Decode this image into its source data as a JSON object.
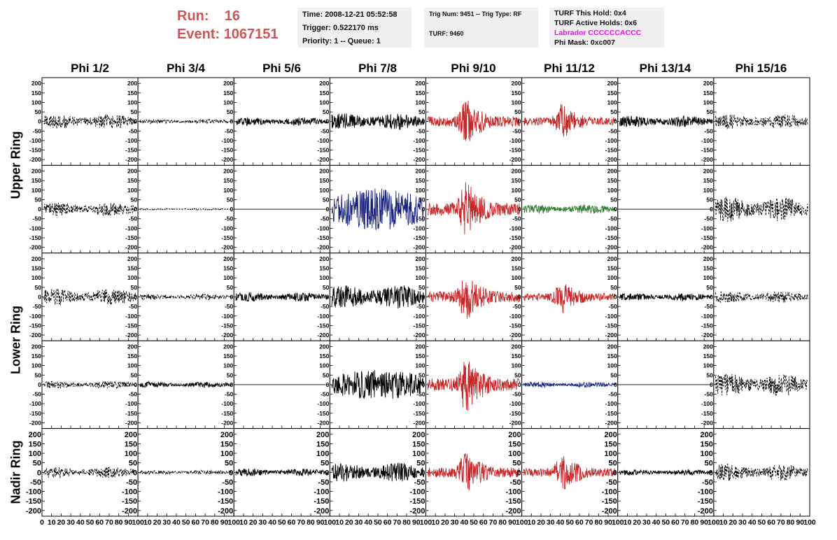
{
  "header": {
    "run_label": "Run:",
    "run_value": "16",
    "event_label": "Event:",
    "event_value": "1067151"
  },
  "info": {
    "time": "Time: 2008-12-21 05:52:58",
    "trigger": "Trigger: 0.522170 ms",
    "priority": "Priority: 1 -- Queue: 1",
    "trig_num": "Trig Num: 9451 -- Trig Type: RF",
    "turf": "TURF: 9460",
    "turf_hold": "TURF This Hold: 0x4",
    "turf_active": "TURF Active Holds: 0x6",
    "labrador": "Labrador CCCCCCACCC",
    "phi_mask": "Phi Mask: 0xc007"
  },
  "colors": {
    "run": "#cc5555",
    "labrador": "#ff00ff",
    "red": "#c62828",
    "blue": "#1a237e",
    "green": "#2e7d32",
    "black": "#000000"
  },
  "chart_data": {
    "type": "line",
    "columns": [
      "Phi 1/2",
      "Phi 3/4",
      "Phi 5/6",
      "Phi 7/8",
      "Phi 9/10",
      "Phi 11/12",
      "Phi 13/14",
      "Phi 15/16"
    ],
    "rings": [
      "Upper Ring",
      "Lower Ring",
      "Nadir Ring"
    ],
    "xlim": [
      0,
      100
    ],
    "x_ticks": [
      0,
      10,
      20,
      30,
      40,
      50,
      60,
      70,
      80,
      90,
      100
    ],
    "ylim": [
      -230,
      230
    ],
    "y_ticks": [
      -200,
      -150,
      -100,
      -50,
      0,
      50,
      100,
      150,
      200
    ],
    "panel_rows": [
      {
        "ring": "Upper Ring",
        "amp": [
          40,
          12,
          22,
          45,
          95,
          75,
          30,
          40
        ],
        "style": [
          "dashed",
          "dashed",
          "solid",
          "solid",
          "solid",
          "solid",
          "solid",
          "dashed"
        ],
        "color": [
          "black",
          "black",
          "black",
          "black",
          "red",
          "red",
          "black",
          "black"
        ],
        "shape": [
          "flat",
          "flat",
          "flat",
          "flat",
          "burst",
          "burst",
          "flat",
          "flat"
        ]
      },
      {
        "ring": "Upper Ring",
        "amp": [
          35,
          4,
          0,
          110,
          120,
          25,
          0,
          65
        ],
        "style": [
          "dashed",
          "dashed",
          "solid",
          "solid",
          "solid",
          "solid",
          "solid",
          "dashed"
        ],
        "color": [
          "black",
          "black",
          "black",
          "blue",
          "red",
          "green",
          "black",
          "black"
        ],
        "shape": [
          "flat",
          "flat",
          "zero",
          "wide",
          "burst",
          "flat",
          "zero",
          "flat"
        ]
      },
      {
        "ring": "Lower Ring",
        "amp": [
          45,
          15,
          25,
          65,
          100,
          70,
          20,
          30
        ],
        "style": [
          "dashed",
          "dashed",
          "solid",
          "solid",
          "solid",
          "solid",
          "solid",
          "dashed"
        ],
        "color": [
          "black",
          "black",
          "black",
          "black",
          "red",
          "red",
          "black",
          "black"
        ],
        "shape": [
          "flat",
          "flat",
          "flat",
          "flat",
          "burst",
          "burst",
          "flat",
          "flat"
        ]
      },
      {
        "ring": "Lower Ring",
        "amp": [
          20,
          15,
          0,
          80,
          120,
          15,
          0,
          60
        ],
        "style": [
          "dashed",
          "solid",
          "solid",
          "solid",
          "solid",
          "solid",
          "solid",
          "dashed"
        ],
        "color": [
          "black",
          "black",
          "black",
          "black",
          "red",
          "blue",
          "black",
          "black"
        ],
        "shape": [
          "flat",
          "flat",
          "zero",
          "wide",
          "burst",
          "flat",
          "zero",
          "flat"
        ]
      },
      {
        "ring": "Nadir Ring",
        "amp": [
          30,
          12,
          20,
          50,
          90,
          80,
          15,
          45
        ],
        "style": [
          "dashed",
          "dashed",
          "solid",
          "solid",
          "solid",
          "solid",
          "solid",
          "dashed"
        ],
        "color": [
          "black",
          "black",
          "black",
          "black",
          "red",
          "red",
          "black",
          "black"
        ],
        "shape": [
          "flat",
          "flat",
          "flat",
          "flat",
          "burst",
          "burst",
          "flat",
          "flat"
        ]
      }
    ]
  }
}
